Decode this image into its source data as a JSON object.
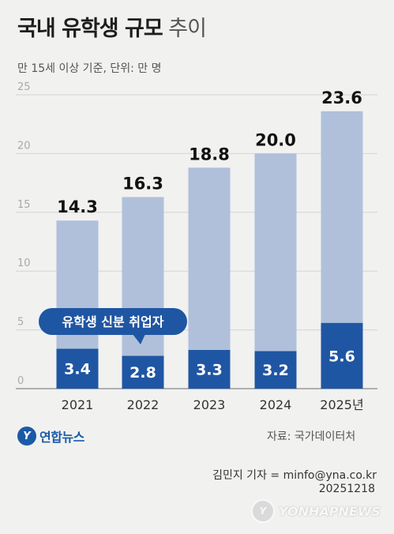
{
  "title_bold": "국내 유학생 규모",
  "title_light": "추이",
  "subtitle": "만 15세 이상 기준, 단위: 만 명",
  "chart_data": {
    "type": "bar",
    "stacked": true,
    "categories": [
      "2021",
      "2022",
      "2023",
      "2024",
      "2025년"
    ],
    "series": [
      {
        "name": "유학생 신분 취업자",
        "values": [
          3.4,
          2.8,
          3.3,
          3.2,
          5.6
        ],
        "color": "#1f56a3"
      },
      {
        "values": [
          10.9,
          13.5,
          15.5,
          16.8,
          18.0
        ],
        "color": "#b0c0db"
      }
    ],
    "totals": [
      14.3,
      16.3,
      18.8,
      20.0,
      23.6
    ],
    "total_labels": [
      "14.3",
      "16.3",
      "18.8",
      "20.0",
      "23.6"
    ],
    "part_labels": [
      "3.4",
      "2.8",
      "3.3",
      "3.2",
      "5.6"
    ],
    "ylim": [
      0,
      25
    ],
    "yticks": [
      "0",
      "5",
      "10",
      "15",
      "20",
      "25"
    ],
    "grid": true,
    "callout": "유학생 신분 취업자",
    "callout_color": "#1f56a3"
  },
  "source": "자료: 국가데이터처",
  "reporter": "김민지 기자 = minfo@yna.co.kr",
  "date": "20251218",
  "logo": {
    "mark": "Y",
    "text": "연합뉴스",
    "icon": "yonhap-logo-icon"
  },
  "watermark": {
    "mark": "Y",
    "text": "YONHAPNEWS",
    "icon": "yonhap-watermark-icon"
  }
}
